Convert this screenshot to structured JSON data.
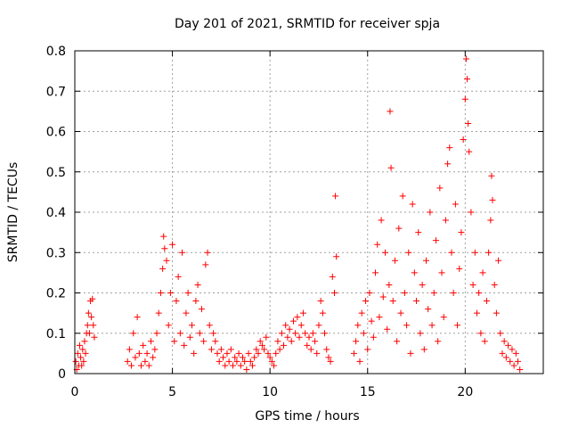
{
  "chart_data": {
    "type": "scatter",
    "title": "Day 201 of 2021, SRMTID for receiver spja",
    "xlabel": "GPS time / hours",
    "ylabel": "SRMTID / TECUs",
    "xlim": [
      0,
      24
    ],
    "ylim": [
      0,
      0.8
    ],
    "x_ticks": [
      0,
      5,
      10,
      15,
      20
    ],
    "x_tick_labels": [
      "0",
      "5",
      "10",
      "15",
      "20"
    ],
    "y_ticks": [
      0,
      0.1,
      0.2,
      0.3,
      0.4,
      0.5,
      0.6,
      0.7,
      0.8
    ],
    "y_tick_labels": [
      "0",
      "0.1",
      "0.2",
      "0.3",
      "0.4",
      "0.5",
      "0.6",
      "0.7",
      "0.8"
    ],
    "grid": true,
    "marker": "+",
    "color": "#ff0000",
    "series": [
      {
        "name": "SRMTID",
        "points": [
          [
            0.05,
            0.03
          ],
          [
            0.1,
            0.01
          ],
          [
            0.15,
            0.05
          ],
          [
            0.2,
            0.02
          ],
          [
            0.25,
            0.07
          ],
          [
            0.3,
            0.04
          ],
          [
            0.35,
            0.02
          ],
          [
            0.4,
            0.06
          ],
          [
            0.45,
            0.03
          ],
          [
            0.5,
            0.08
          ],
          [
            0.55,
            0.05
          ],
          [
            0.6,
            0.1
          ],
          [
            0.65,
            0.12
          ],
          [
            0.7,
            0.15
          ],
          [
            0.75,
            0.1
          ],
          [
            0.8,
            0.18
          ],
          [
            0.85,
            0.14
          ],
          [
            0.9,
            0.185
          ],
          [
            0.95,
            0.12
          ],
          [
            1.0,
            0.09
          ],
          [
            2.7,
            0.03
          ],
          [
            2.8,
            0.06
          ],
          [
            2.9,
            0.02
          ],
          [
            3.0,
            0.1
          ],
          [
            3.1,
            0.04
          ],
          [
            3.2,
            0.14
          ],
          [
            3.3,
            0.05
          ],
          [
            3.4,
            0.02
          ],
          [
            3.5,
            0.07
          ],
          [
            3.6,
            0.03
          ],
          [
            3.7,
            0.05
          ],
          [
            3.8,
            0.02
          ],
          [
            3.9,
            0.08
          ],
          [
            4.0,
            0.04
          ],
          [
            4.1,
            0.06
          ],
          [
            4.2,
            0.1
          ],
          [
            4.3,
            0.15
          ],
          [
            4.4,
            0.2
          ],
          [
            4.5,
            0.26
          ],
          [
            4.55,
            0.34
          ],
          [
            4.6,
            0.31
          ],
          [
            4.7,
            0.28
          ],
          [
            4.8,
            0.12
          ],
          [
            4.9,
            0.2
          ],
          [
            5.0,
            0.32
          ],
          [
            5.1,
            0.08
          ],
          [
            5.2,
            0.18
          ],
          [
            5.3,
            0.24
          ],
          [
            5.4,
            0.1
          ],
          [
            5.5,
            0.3
          ],
          [
            5.6,
            0.07
          ],
          [
            5.7,
            0.15
          ],
          [
            5.8,
            0.2
          ],
          [
            5.9,
            0.09
          ],
          [
            6.0,
            0.12
          ],
          [
            6.1,
            0.05
          ],
          [
            6.2,
            0.18
          ],
          [
            6.3,
            0.22
          ],
          [
            6.4,
            0.1
          ],
          [
            6.5,
            0.16
          ],
          [
            6.6,
            0.08
          ],
          [
            6.7,
            0.27
          ],
          [
            6.8,
            0.3
          ],
          [
            6.9,
            0.12
          ],
          [
            7.0,
            0.06
          ],
          [
            7.1,
            0.1
          ],
          [
            7.2,
            0.08
          ],
          [
            7.3,
            0.05
          ],
          [
            7.4,
            0.03
          ],
          [
            7.5,
            0.06
          ],
          [
            7.6,
            0.04
          ],
          [
            7.7,
            0.02
          ],
          [
            7.8,
            0.05
          ],
          [
            7.9,
            0.03
          ],
          [
            8.0,
            0.06
          ],
          [
            8.1,
            0.02
          ],
          [
            8.2,
            0.04
          ],
          [
            8.3,
            0.03
          ],
          [
            8.4,
            0.05
          ],
          [
            8.5,
            0.02
          ],
          [
            8.6,
            0.04
          ],
          [
            8.7,
            0.03
          ],
          [
            8.8,
            0.01
          ],
          [
            8.9,
            0.05
          ],
          [
            9.0,
            0.03
          ],
          [
            9.1,
            0.02
          ],
          [
            9.2,
            0.04
          ],
          [
            9.3,
            0.06
          ],
          [
            9.4,
            0.05
          ],
          [
            9.5,
            0.08
          ],
          [
            9.6,
            0.07
          ],
          [
            9.7,
            0.06
          ],
          [
            9.8,
            0.09
          ],
          [
            9.9,
            0.05
          ],
          [
            10.0,
            0.04
          ],
          [
            10.1,
            0.03
          ],
          [
            10.2,
            0.02
          ],
          [
            10.3,
            0.05
          ],
          [
            10.4,
            0.08
          ],
          [
            10.5,
            0.06
          ],
          [
            10.6,
            0.1
          ],
          [
            10.7,
            0.07
          ],
          [
            10.8,
            0.12
          ],
          [
            10.9,
            0.09
          ],
          [
            11.0,
            0.11
          ],
          [
            11.1,
            0.08
          ],
          [
            11.2,
            0.13
          ],
          [
            11.3,
            0.1
          ],
          [
            11.4,
            0.14
          ],
          [
            11.5,
            0.09
          ],
          [
            11.6,
            0.12
          ],
          [
            11.7,
            0.15
          ],
          [
            11.8,
            0.1
          ],
          [
            11.9,
            0.07
          ],
          [
            12.0,
            0.09
          ],
          [
            12.1,
            0.06
          ],
          [
            12.2,
            0.1
          ],
          [
            12.3,
            0.08
          ],
          [
            12.4,
            0.05
          ],
          [
            12.5,
            0.12
          ],
          [
            12.6,
            0.18
          ],
          [
            12.7,
            0.15
          ],
          [
            12.8,
            0.1
          ],
          [
            12.9,
            0.06
          ],
          [
            13.0,
            0.04
          ],
          [
            13.1,
            0.03
          ],
          [
            13.2,
            0.24
          ],
          [
            13.3,
            0.2
          ],
          [
            13.35,
            0.44
          ],
          [
            13.4,
            0.29
          ],
          [
            14.3,
            0.05
          ],
          [
            14.4,
            0.08
          ],
          [
            14.5,
            0.12
          ],
          [
            14.6,
            0.03
          ],
          [
            14.7,
            0.15
          ],
          [
            14.8,
            0.1
          ],
          [
            14.9,
            0.18
          ],
          [
            15.0,
            0.06
          ],
          [
            15.1,
            0.2
          ],
          [
            15.2,
            0.13
          ],
          [
            15.3,
            0.09
          ],
          [
            15.4,
            0.25
          ],
          [
            15.5,
            0.32
          ],
          [
            15.6,
            0.14
          ],
          [
            15.7,
            0.38
          ],
          [
            15.8,
            0.19
          ],
          [
            15.9,
            0.3
          ],
          [
            16.0,
            0.11
          ],
          [
            16.1,
            0.22
          ],
          [
            16.15,
            0.65
          ],
          [
            16.2,
            0.51
          ],
          [
            16.3,
            0.18
          ],
          [
            16.4,
            0.28
          ],
          [
            16.5,
            0.08
          ],
          [
            16.6,
            0.36
          ],
          [
            16.7,
            0.15
          ],
          [
            16.8,
            0.44
          ],
          [
            16.9,
            0.2
          ],
          [
            17.0,
            0.12
          ],
          [
            17.1,
            0.3
          ],
          [
            17.2,
            0.05
          ],
          [
            17.3,
            0.42
          ],
          [
            17.4,
            0.25
          ],
          [
            17.5,
            0.18
          ],
          [
            17.6,
            0.35
          ],
          [
            17.7,
            0.1
          ],
          [
            17.8,
            0.22
          ],
          [
            17.9,
            0.06
          ],
          [
            18.0,
            0.28
          ],
          [
            18.1,
            0.16
          ],
          [
            18.2,
            0.4
          ],
          [
            18.3,
            0.12
          ],
          [
            18.4,
            0.2
          ],
          [
            18.5,
            0.33
          ],
          [
            18.6,
            0.08
          ],
          [
            18.7,
            0.46
          ],
          [
            18.8,
            0.25
          ],
          [
            18.9,
            0.14
          ],
          [
            19.0,
            0.38
          ],
          [
            19.1,
            0.52
          ],
          [
            19.2,
            0.56
          ],
          [
            19.3,
            0.3
          ],
          [
            19.4,
            0.2
          ],
          [
            19.5,
            0.42
          ],
          [
            19.6,
            0.12
          ],
          [
            19.7,
            0.26
          ],
          [
            19.8,
            0.35
          ],
          [
            19.9,
            0.58
          ],
          [
            20.0,
            0.68
          ],
          [
            20.05,
            0.78
          ],
          [
            20.1,
            0.73
          ],
          [
            20.15,
            0.62
          ],
          [
            20.2,
            0.55
          ],
          [
            20.3,
            0.4
          ],
          [
            20.4,
            0.22
          ],
          [
            20.5,
            0.3
          ],
          [
            20.6,
            0.15
          ],
          [
            20.7,
            0.2
          ],
          [
            20.8,
            0.1
          ],
          [
            20.9,
            0.25
          ],
          [
            21.0,
            0.08
          ],
          [
            21.1,
            0.18
          ],
          [
            21.2,
            0.3
          ],
          [
            21.3,
            0.38
          ],
          [
            21.35,
            0.49
          ],
          [
            21.4,
            0.43
          ],
          [
            21.5,
            0.22
          ],
          [
            21.6,
            0.15
          ],
          [
            21.7,
            0.28
          ],
          [
            21.8,
            0.1
          ],
          [
            21.9,
            0.05
          ],
          [
            22.0,
            0.08
          ],
          [
            22.1,
            0.04
          ],
          [
            22.2,
            0.07
          ],
          [
            22.3,
            0.03
          ],
          [
            22.4,
            0.06
          ],
          [
            22.5,
            0.02
          ],
          [
            22.6,
            0.05
          ],
          [
            22.7,
            0.03
          ],
          [
            22.8,
            0.01
          ]
        ]
      }
    ]
  }
}
